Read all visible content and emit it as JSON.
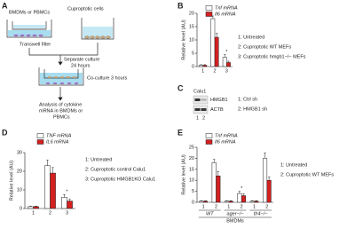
{
  "diagram": {
    "panel_label": "A",
    "texts": [
      "BMDMs or PBMCs",
      "Transwell filter",
      "Cuproptotic cells",
      "Separate culture",
      "24 hours",
      "Co-culture 3 hours",
      "Analysis of cytokine",
      "mRNA in BMDMs or",
      "PBMCs"
    ]
  },
  "blot": {
    "panel_label": "C",
    "cell_line": "Calu1",
    "bands": [
      "HMGB1",
      "ACTB"
    ],
    "lanes": [
      "1",
      "2"
    ],
    "legend": [
      "1: Ctrl sh",
      "2: HMGB1 sh"
    ]
  },
  "chart_data": [
    {
      "type": "bar",
      "panel_label": "B",
      "ylabel": "Relative level (AU)",
      "categories": [
        "1",
        "2",
        "3"
      ],
      "series": [
        {
          "name": "Tnf mRNA",
          "color": "#ffffff",
          "values": [
            0.5,
            18,
            3.5
          ],
          "errors": [
            0.2,
            1,
            1
          ]
        },
        {
          "name": "Il6 mRNA",
          "color": "#d42020",
          "values": [
            0.5,
            11,
            1.5
          ],
          "errors": [
            0.2,
            1.5,
            0.5
          ]
        }
      ],
      "significance": [
        null,
        null,
        "*"
      ],
      "ylim": [
        0,
        20
      ],
      "yticks": [
        0,
        5,
        10,
        15,
        20
      ],
      "annotations": [
        "1: Untreated",
        "2: Cuproptotic WT MEFs",
        "3: Cuproptotic hmgb1−/− MEFs"
      ]
    },
    {
      "type": "bar",
      "panel_label": "D",
      "ylabel": "Relative level (AU)",
      "categories": [
        "1",
        "2",
        "3"
      ],
      "series": [
        {
          "name": "TNF mRNA",
          "color": "#ffffff",
          "values": [
            1,
            23,
            6
          ],
          "errors": [
            0.3,
            3,
            1.5
          ]
        },
        {
          "name": "IL6 mRNA",
          "color": "#d42020",
          "values": [
            1,
            19,
            4
          ],
          "errors": [
            0.3,
            3,
            1
          ]
        }
      ],
      "significance": [
        null,
        null,
        "*"
      ],
      "ylim": [
        0,
        30
      ],
      "yticks": [
        0,
        10,
        20,
        30
      ],
      "annotations": [
        "1: Untreated",
        "2: Cuproptotic control Calu1",
        "3: Cuproptotic HMGB1KO Calu1"
      ]
    },
    {
      "type": "bar",
      "panel_label": "E",
      "ylabel": "Relative level (AU)",
      "categories": [
        "1",
        "2",
        "1",
        "2",
        "1",
        "2"
      ],
      "groups": [
        "WT",
        "ager−/−",
        "tlr4−/−"
      ],
      "xlabel": "BMDMs",
      "series": [
        {
          "name": "Tnf mRNA",
          "color": "#ffffff",
          "values": [
            0.5,
            18,
            0.5,
            4,
            0.5,
            20
          ],
          "errors": [
            0.2,
            1.5,
            0.2,
            1,
            0.2,
            2.5
          ]
        },
        {
          "name": "Il6 mRNA",
          "color": "#d42020",
          "values": [
            0.5,
            12,
            0.5,
            3,
            0.5,
            10
          ],
          "errors": [
            0.2,
            2,
            0.2,
            0.8,
            0.2,
            1.5
          ]
        }
      ],
      "significance": [
        null,
        null,
        null,
        "*",
        null,
        null
      ],
      "ylim": [
        0,
        25
      ],
      "yticks": [
        0,
        5,
        10,
        15,
        20,
        25
      ],
      "annotations": [
        "1: Untreated",
        "2: Cuproptotic WT MEFs"
      ]
    }
  ]
}
